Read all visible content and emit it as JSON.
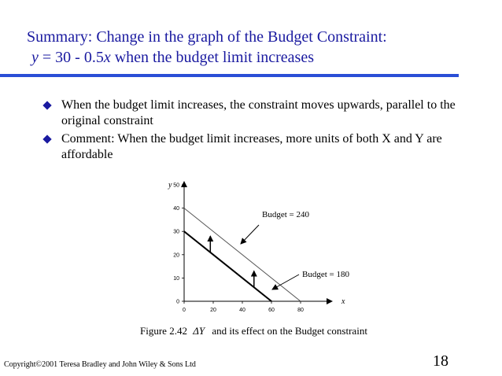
{
  "slide": {
    "title_line1": "Summary: Change in the graph of the Budget Constraint:",
    "equation_y": "y",
    "equation_mid": " =  30 - 0.5",
    "equation_x": "x",
    "equation_rest": "  when the budget limit increases",
    "bullets": [
      "When the budget limit increases, the constraint moves upwards, parallel to the original constraint",
      "Comment: When the budget limit increases, more units of both X and Y are affordable"
    ],
    "caption_prefix": "Figure 2.42",
    "caption_symbol": "ΔY",
    "caption_suffix": "and its effect on the Budget constraint",
    "footer": "Copyright©2001 Teresa Bradley and John Wiley & Sons Ltd",
    "page_number": "18",
    "title_color": "#1a1aa0",
    "rule_color": "#2a4ed6",
    "bullet_icon": "diamond-bullet-icon"
  },
  "chart_data": {
    "type": "line",
    "xlabel": "x",
    "ylabel": "y",
    "xlim": [
      0,
      80
    ],
    "ylim": [
      0,
      50
    ],
    "x_ticks": [
      0,
      20,
      40,
      60,
      80
    ],
    "y_ticks": [
      0,
      10,
      20,
      30,
      40,
      50
    ],
    "grid": false,
    "series": [
      {
        "name": "Budget = 240",
        "points": [
          [
            0,
            40
          ],
          [
            80,
            0
          ]
        ],
        "color": "#555555",
        "width": 1
      },
      {
        "name": "Budget = 180",
        "points": [
          [
            0,
            30
          ],
          [
            60,
            0
          ]
        ],
        "color": "#000000",
        "width": 2
      }
    ],
    "annotations": [
      {
        "text": "Budget = 240",
        "series": 0
      },
      {
        "text": "Budget = 180",
        "series": 1
      }
    ],
    "shift_arrows": [
      {
        "from": [
          18,
          21
        ],
        "to": [
          18,
          28
        ]
      },
      {
        "from": [
          48,
          6
        ],
        "to": [
          48,
          13
        ]
      }
    ]
  }
}
